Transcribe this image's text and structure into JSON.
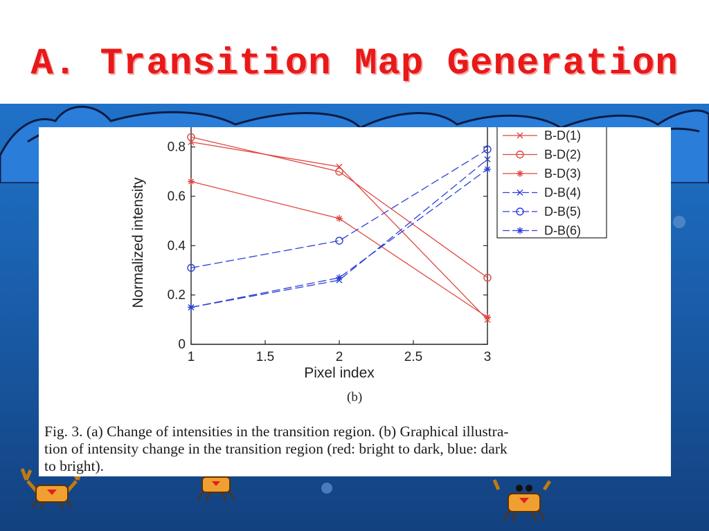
{
  "slide": {
    "title": "A. Transition Map Generation"
  },
  "figure": {
    "subfigure_label": "(b)",
    "caption_lines": [
      "Fig. 3.   (a) Change of intensities in the transition region. (b) Graphical illustra-",
      "tion of intensity change in the transition region (red: bright to dark, blue: dark",
      "to bright)."
    ]
  },
  "colors": {
    "red": "#e0453f",
    "blue": "#2a3fd8",
    "title": "#e81919"
  },
  "chart_data": {
    "type": "line",
    "xlabel": "Pixel index",
    "ylabel": "Normalized intensity",
    "xlim": [
      1,
      3
    ],
    "ylim": [
      0,
      0.88
    ],
    "x": [
      1,
      2,
      3
    ],
    "xticks": [
      1,
      1.5,
      2,
      2.5,
      3
    ],
    "xtick_labels": [
      "1",
      "1.5",
      "2",
      "2.5",
      "3"
    ],
    "yticks": [
      0,
      0.2,
      0.4,
      0.6,
      0.8
    ],
    "ytick_labels": [
      "0",
      "0.2",
      "0.4",
      "0.6",
      "0.8"
    ],
    "legend_position": "right",
    "series": [
      {
        "name": "B-D(1)",
        "values": [
          0.82,
          0.72,
          0.1
        ],
        "color": "#e0453f",
        "marker": "x",
        "dashed": false
      },
      {
        "name": "B-D(2)",
        "values": [
          0.84,
          0.7,
          0.27
        ],
        "color": "#e0453f",
        "marker": "o",
        "dashed": false
      },
      {
        "name": "B-D(3)",
        "values": [
          0.66,
          0.51,
          0.11
        ],
        "color": "#e0453f",
        "marker": "*",
        "dashed": false
      },
      {
        "name": "D-B(4)",
        "values": [
          0.15,
          0.26,
          0.75
        ],
        "color": "#2a3fd8",
        "marker": "x",
        "dashed": true
      },
      {
        "name": "D-B(5)",
        "values": [
          0.31,
          0.42,
          0.79
        ],
        "color": "#2a3fd8",
        "marker": "o",
        "dashed": true
      },
      {
        "name": "D-B(6)",
        "values": [
          0.15,
          0.27,
          0.71
        ],
        "color": "#2a3fd8",
        "marker": "*",
        "dashed": true
      }
    ]
  }
}
